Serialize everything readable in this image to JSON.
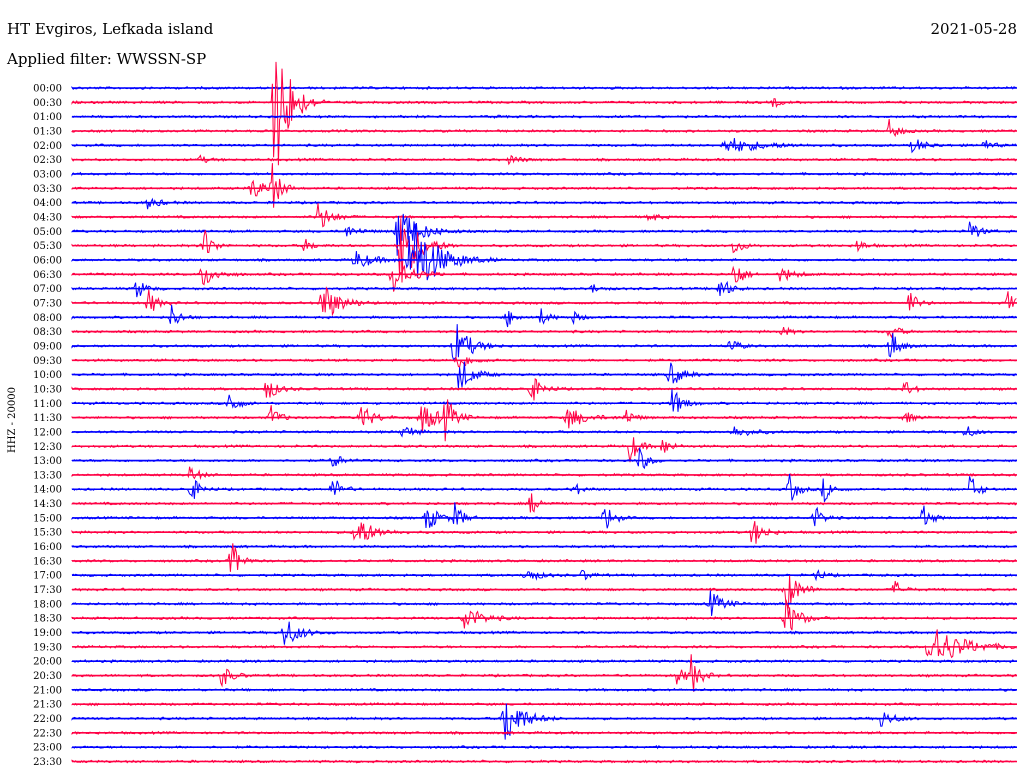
{
  "header": {
    "title": "HT Evgiros, Lefkada island",
    "date": "2021-05-28",
    "filter": "Applied filter: WWSSN-SP"
  },
  "chart_data": {
    "type": "line",
    "channel_label": "HHZ - 20000",
    "row_labels": [
      "00:00",
      "00:30",
      "01:00",
      "01:30",
      "02:00",
      "02:30",
      "03:00",
      "03:30",
      "04:00",
      "04:30",
      "05:00",
      "05:30",
      "06:00",
      "06:30",
      "07:00",
      "07:30",
      "08:00",
      "08:30",
      "09:00",
      "09:30",
      "10:00",
      "10:30",
      "11:00",
      "11:30",
      "12:00",
      "12:30",
      "13:00",
      "13:30",
      "14:00",
      "14:30",
      "15:00",
      "15:30",
      "16:00",
      "16:30",
      "17:00",
      "17:30",
      "18:00",
      "18:30",
      "19:00",
      "19:30",
      "20:00",
      "20:30",
      "21:00",
      "21:30",
      "22:00",
      "22:30",
      "23:00",
      "23:30"
    ],
    "colors": [
      "#0000ff",
      "#ff0044"
    ],
    "events": [
      {
        "row": 1,
        "x": 0.215,
        "amp": 90,
        "dur": 0.035
      },
      {
        "row": 1,
        "x": 0.742,
        "amp": 6,
        "dur": 0.015
      },
      {
        "row": 2,
        "x": 0.448,
        "amp": 3,
        "dur": 0.01
      },
      {
        "row": 3,
        "x": 0.865,
        "amp": 12,
        "dur": 0.02
      },
      {
        "row": 4,
        "x": 0.695,
        "amp": 8,
        "dur": 0.08
      },
      {
        "row": 4,
        "x": 0.89,
        "amp": 8,
        "dur": 0.03
      },
      {
        "row": 4,
        "x": 0.962,
        "amp": 9,
        "dur": 0.02
      },
      {
        "row": 5,
        "x": 0.135,
        "amp": 4,
        "dur": 0.02
      },
      {
        "row": 5,
        "x": 0.463,
        "amp": 5,
        "dur": 0.025
      },
      {
        "row": 7,
        "x": 0.19,
        "amp": 12,
        "dur": 0.03
      },
      {
        "row": 7,
        "x": 0.21,
        "amp": 30,
        "dur": 0.02
      },
      {
        "row": 8,
        "x": 0.08,
        "amp": 6,
        "dur": 0.03
      },
      {
        "row": 9,
        "x": 0.26,
        "amp": 16,
        "dur": 0.03
      },
      {
        "row": 9,
        "x": 0.61,
        "amp": 6,
        "dur": 0.02
      },
      {
        "row": 10,
        "x": 0.29,
        "amp": 6,
        "dur": 0.03
      },
      {
        "row": 10,
        "x": 0.345,
        "amp": 30,
        "dur": 0.045
      },
      {
        "row": 10,
        "x": 0.95,
        "amp": 14,
        "dur": 0.02
      },
      {
        "row": 11,
        "x": 0.138,
        "amp": 22,
        "dur": 0.02
      },
      {
        "row": 11,
        "x": 0.245,
        "amp": 8,
        "dur": 0.02
      },
      {
        "row": 11,
        "x": 0.348,
        "amp": 45,
        "dur": 0.04
      },
      {
        "row": 11,
        "x": 0.7,
        "amp": 10,
        "dur": 0.02
      },
      {
        "row": 11,
        "x": 0.83,
        "amp": 7,
        "dur": 0.02
      },
      {
        "row": 12,
        "x": 0.3,
        "amp": 10,
        "dur": 0.04
      },
      {
        "row": 12,
        "x": 0.36,
        "amp": 45,
        "dur": 0.06
      },
      {
        "row": 13,
        "x": 0.138,
        "amp": 14,
        "dur": 0.03
      },
      {
        "row": 13,
        "x": 0.34,
        "amp": 20,
        "dur": 0.04
      },
      {
        "row": 13,
        "x": 0.7,
        "amp": 20,
        "dur": 0.02
      },
      {
        "row": 13,
        "x": 0.75,
        "amp": 8,
        "dur": 0.03
      },
      {
        "row": 14,
        "x": 0.068,
        "amp": 12,
        "dur": 0.02
      },
      {
        "row": 14,
        "x": 0.55,
        "amp": 5,
        "dur": 0.02
      },
      {
        "row": 14,
        "x": 0.685,
        "amp": 16,
        "dur": 0.02
      },
      {
        "row": 15,
        "x": 0.08,
        "amp": 16,
        "dur": 0.02
      },
      {
        "row": 15,
        "x": 0.265,
        "amp": 22,
        "dur": 0.04
      },
      {
        "row": 15,
        "x": 0.885,
        "amp": 14,
        "dur": 0.02
      },
      {
        "row": 15,
        "x": 0.99,
        "amp": 12,
        "dur": 0.02
      },
      {
        "row": 16,
        "x": 0.105,
        "amp": 14,
        "dur": 0.02
      },
      {
        "row": 16,
        "x": 0.46,
        "amp": 10,
        "dur": 0.02
      },
      {
        "row": 16,
        "x": 0.495,
        "amp": 10,
        "dur": 0.02
      },
      {
        "row": 16,
        "x": 0.53,
        "amp": 6,
        "dur": 0.02
      },
      {
        "row": 17,
        "x": 0.75,
        "amp": 6,
        "dur": 0.02
      },
      {
        "row": 17,
        "x": 0.865,
        "amp": 10,
        "dur": 0.02
      },
      {
        "row": 18,
        "x": 0.405,
        "amp": 26,
        "dur": 0.035
      },
      {
        "row": 18,
        "x": 0.695,
        "amp": 10,
        "dur": 0.02
      },
      {
        "row": 18,
        "x": 0.865,
        "amp": 20,
        "dur": 0.02
      },
      {
        "row": 19,
        "x": 0.408,
        "amp": 10,
        "dur": 0.03
      },
      {
        "row": 20,
        "x": 0.41,
        "amp": 20,
        "dur": 0.03
      },
      {
        "row": 20,
        "x": 0.632,
        "amp": 14,
        "dur": 0.03
      },
      {
        "row": 21,
        "x": 0.205,
        "amp": 14,
        "dur": 0.025
      },
      {
        "row": 21,
        "x": 0.485,
        "amp": 16,
        "dur": 0.025
      },
      {
        "row": 21,
        "x": 0.88,
        "amp": 10,
        "dur": 0.02
      },
      {
        "row": 22,
        "x": 0.165,
        "amp": 16,
        "dur": 0.02
      },
      {
        "row": 22,
        "x": 0.635,
        "amp": 16,
        "dur": 0.025
      },
      {
        "row": 23,
        "x": 0.21,
        "amp": 14,
        "dur": 0.02
      },
      {
        "row": 23,
        "x": 0.305,
        "amp": 14,
        "dur": 0.03
      },
      {
        "row": 23,
        "x": 0.37,
        "amp": 16,
        "dur": 0.04
      },
      {
        "row": 23,
        "x": 0.395,
        "amp": 22,
        "dur": 0.02
      },
      {
        "row": 23,
        "x": 0.525,
        "amp": 12,
        "dur": 0.04
      },
      {
        "row": 23,
        "x": 0.585,
        "amp": 10,
        "dur": 0.02
      },
      {
        "row": 23,
        "x": 0.88,
        "amp": 8,
        "dur": 0.02
      },
      {
        "row": 24,
        "x": 0.35,
        "amp": 12,
        "dur": 0.02
      },
      {
        "row": 24,
        "x": 0.7,
        "amp": 6,
        "dur": 0.04
      },
      {
        "row": 24,
        "x": 0.945,
        "amp": 8,
        "dur": 0.02
      },
      {
        "row": 25,
        "x": 0.59,
        "amp": 18,
        "dur": 0.02
      },
      {
        "row": 25,
        "x": 0.625,
        "amp": 10,
        "dur": 0.02
      },
      {
        "row": 26,
        "x": 0.275,
        "amp": 10,
        "dur": 0.02
      },
      {
        "row": 26,
        "x": 0.6,
        "amp": 14,
        "dur": 0.02
      },
      {
        "row": 27,
        "x": 0.125,
        "amp": 10,
        "dur": 0.02
      },
      {
        "row": 28,
        "x": 0.125,
        "amp": 16,
        "dur": 0.02
      },
      {
        "row": 28,
        "x": 0.275,
        "amp": 16,
        "dur": 0.02
      },
      {
        "row": 28,
        "x": 0.53,
        "amp": 8,
        "dur": 0.02
      },
      {
        "row": 28,
        "x": 0.758,
        "amp": 18,
        "dur": 0.02
      },
      {
        "row": 28,
        "x": 0.795,
        "amp": 14,
        "dur": 0.02
      },
      {
        "row": 28,
        "x": 0.95,
        "amp": 16,
        "dur": 0.02
      },
      {
        "row": 29,
        "x": 0.485,
        "amp": 12,
        "dur": 0.02
      },
      {
        "row": 30,
        "x": 0.375,
        "amp": 14,
        "dur": 0.03
      },
      {
        "row": 30,
        "x": 0.405,
        "amp": 14,
        "dur": 0.02
      },
      {
        "row": 30,
        "x": 0.563,
        "amp": 18,
        "dur": 0.02
      },
      {
        "row": 30,
        "x": 0.785,
        "amp": 14,
        "dur": 0.02
      },
      {
        "row": 30,
        "x": 0.9,
        "amp": 14,
        "dur": 0.02
      },
      {
        "row": 31,
        "x": 0.3,
        "amp": 18,
        "dur": 0.04
      },
      {
        "row": 31,
        "x": 0.72,
        "amp": 16,
        "dur": 0.025
      },
      {
        "row": 33,
        "x": 0.168,
        "amp": 24,
        "dur": 0.02
      },
      {
        "row": 34,
        "x": 0.48,
        "amp": 8,
        "dur": 0.03
      },
      {
        "row": 34,
        "x": 0.54,
        "amp": 6,
        "dur": 0.02
      },
      {
        "row": 34,
        "x": 0.785,
        "amp": 8,
        "dur": 0.02
      },
      {
        "row": 35,
        "x": 0.755,
        "amp": 24,
        "dur": 0.03
      },
      {
        "row": 35,
        "x": 0.87,
        "amp": 10,
        "dur": 0.02
      },
      {
        "row": 36,
        "x": 0.675,
        "amp": 14,
        "dur": 0.03
      },
      {
        "row": 37,
        "x": 0.415,
        "amp": 14,
        "dur": 0.04
      },
      {
        "row": 37,
        "x": 0.755,
        "amp": 22,
        "dur": 0.03
      },
      {
        "row": 38,
        "x": 0.225,
        "amp": 16,
        "dur": 0.035
      },
      {
        "row": 39,
        "x": 0.91,
        "amp": 24,
        "dur": 0.07
      },
      {
        "row": 41,
        "x": 0.158,
        "amp": 12,
        "dur": 0.025
      },
      {
        "row": 41,
        "x": 0.64,
        "amp": 8,
        "dur": 0.03
      },
      {
        "row": 41,
        "x": 0.655,
        "amp": 20,
        "dur": 0.02
      },
      {
        "row": 44,
        "x": 0.458,
        "amp": 30,
        "dur": 0.04
      },
      {
        "row": 44,
        "x": 0.855,
        "amp": 10,
        "dur": 0.03
      }
    ]
  }
}
